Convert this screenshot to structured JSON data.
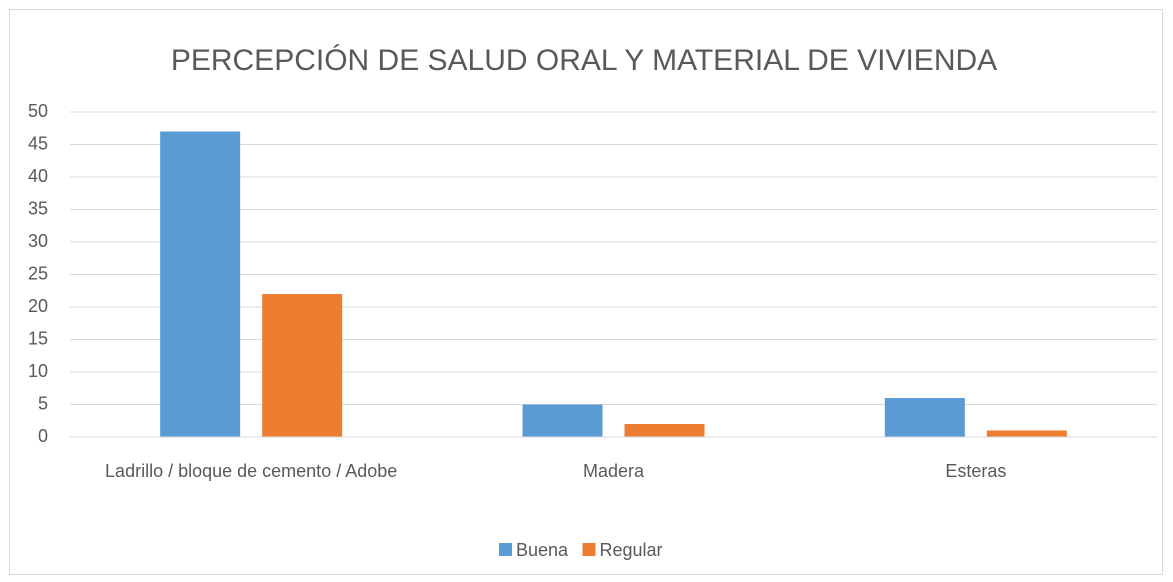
{
  "chart_data": {
    "type": "bar",
    "title": "PERCEPCIÓN DE SALUD ORAL Y MATERIAL DE VIVIENDA",
    "categories": [
      "Ladrillo / bloque de cemento / Adobe",
      "Madera",
      "Esteras"
    ],
    "series": [
      {
        "name": "Buena",
        "color": "#5b9bd5",
        "values": [
          47,
          5,
          6
        ]
      },
      {
        "name": "Regular",
        "color": "#ed7d31",
        "values": [
          22,
          2,
          1
        ]
      }
    ],
    "ylim": [
      0,
      50
    ],
    "yticks": [
      0,
      5,
      10,
      15,
      20,
      25,
      30,
      35,
      40,
      45,
      50
    ],
    "grid": true,
    "legend": "bottom"
  }
}
